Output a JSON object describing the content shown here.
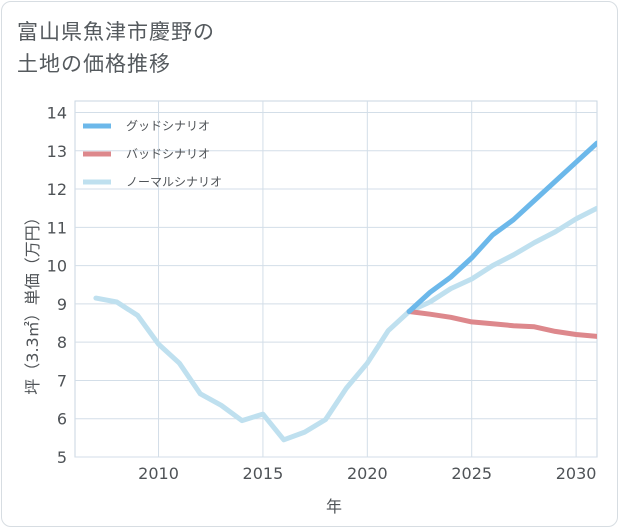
{
  "title_lines": [
    "富山県魚津市慶野の",
    "土地の価格推移"
  ],
  "chart_data": {
    "type": "line",
    "xlabel": "年",
    "ylabel": "坪（3.3㎡）単価（万円）",
    "xlim": [
      2006,
      2031
    ],
    "ylim": [
      5,
      14.3
    ],
    "xticks": [
      2010,
      2015,
      2020,
      2025,
      2030
    ],
    "yticks": [
      5,
      6,
      7,
      8,
      9,
      10,
      11,
      12,
      13,
      14
    ],
    "grid": true,
    "legend_position": "top-left",
    "series": [
      {
        "name": "グッドシナリオ",
        "color": "#6cb8ea",
        "x": [
          2022,
          2023,
          2024,
          2025,
          2026,
          2027,
          2028,
          2029,
          2030,
          2031
        ],
        "values": [
          8.8,
          9.3,
          9.7,
          10.2,
          10.8,
          11.2,
          11.7,
          12.2,
          12.7,
          13.2
        ]
      },
      {
        "name": "バッドシナリオ",
        "color": "#dd888c",
        "x": [
          2022,
          2023,
          2024,
          2025,
          2026,
          2027,
          2028,
          2029,
          2030,
          2031
        ],
        "values": [
          8.8,
          8.73,
          8.65,
          8.53,
          8.48,
          8.43,
          8.4,
          8.28,
          8.2,
          8.15
        ]
      },
      {
        "name": "ノーマルシナリオ",
        "color": "#bfe0ef",
        "x": [
          2007,
          2008,
          2009,
          2010,
          2011,
          2012,
          2013,
          2014,
          2015,
          2016,
          2017,
          2018,
          2019,
          2020,
          2021,
          2022,
          2023,
          2024,
          2025,
          2026,
          2027,
          2028,
          2029,
          2030,
          2031
        ],
        "values": [
          9.15,
          9.05,
          8.7,
          7.95,
          7.45,
          6.65,
          6.35,
          5.95,
          6.12,
          5.45,
          5.65,
          5.98,
          6.8,
          7.45,
          8.3,
          8.8,
          9.05,
          9.4,
          9.65,
          10.0,
          10.28,
          10.6,
          10.88,
          11.22,
          11.5
        ]
      }
    ]
  }
}
